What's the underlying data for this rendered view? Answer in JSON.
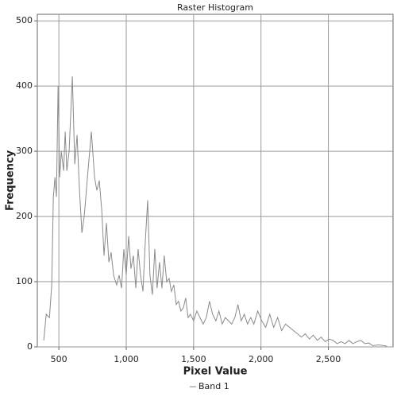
{
  "chart_data": {
    "type": "line",
    "title": "Raster Histogram",
    "xlabel": "Pixel Value",
    "ylabel": "Frequency",
    "x": [
      388,
      406,
      430,
      447,
      459,
      471,
      482,
      494,
      506,
      518,
      535,
      547,
      559,
      576,
      600,
      618,
      635,
      653,
      671,
      688,
      712,
      741,
      765,
      782,
      800,
      818,
      835,
      853,
      871,
      888,
      906,
      929,
      947,
      965,
      982,
      1000,
      1018,
      1035,
      1053,
      1071,
      1088,
      1106,
      1124,
      1141,
      1159,
      1176,
      1194,
      1212,
      1229,
      1247,
      1265,
      1282,
      1300,
      1318,
      1335,
      1353,
      1371,
      1388,
      1406,
      1424,
      1441,
      1459,
      1476,
      1500,
      1524,
      1547,
      1571,
      1594,
      1618,
      1641,
      1665,
      1688,
      1712,
      1735,
      1759,
      1782,
      1806,
      1829,
      1853,
      1876,
      1900,
      1924,
      1947,
      1976,
      2006,
      2035,
      2065,
      2094,
      2124,
      2153,
      2182,
      2212,
      2241,
      2271,
      2300,
      2329,
      2359,
      2388,
      2418,
      2447,
      2476,
      2506,
      2535,
      2565,
      2594,
      2624,
      2653,
      2682,
      2712,
      2741,
      2771,
      2800,
      2829,
      2876,
      2935
    ],
    "series": [
      {
        "name": "Band 1",
        "color": "#8a8a8a",
        "values": [
          10,
          50,
          45,
          95,
          230,
          260,
          230,
          400,
          260,
          300,
          270,
          330,
          270,
          300,
          415,
          280,
          325,
          240,
          175,
          200,
          260,
          330,
          260,
          240,
          255,
          210,
          140,
          190,
          130,
          145,
          110,
          95,
          110,
          90,
          150,
          110,
          170,
          120,
          140,
          90,
          150,
          110,
          85,
          160,
          225,
          110,
          80,
          150,
          90,
          130,
          90,
          140,
          100,
          105,
          85,
          95,
          65,
          70,
          55,
          60,
          75,
          45,
          50,
          40,
          55,
          45,
          35,
          45,
          70,
          50,
          40,
          55,
          35,
          45,
          40,
          35,
          45,
          65,
          40,
          50,
          35,
          45,
          35,
          55,
          40,
          30,
          50,
          30,
          45,
          25,
          35,
          30,
          25,
          20,
          15,
          20,
          12,
          18,
          10,
          15,
          8,
          12,
          10,
          5,
          8,
          5,
          10,
          5,
          8,
          10,
          5,
          6,
          2,
          3,
          1
        ]
      }
    ],
    "xlim": [
      340,
      2980
    ],
    "ylim": [
      0,
      510
    ],
    "xticks": [
      500,
      {
        "value": 1000,
        "label": "1,000"
      },
      {
        "value": 1500,
        "label": "1,500"
      },
      {
        "value": 2000,
        "label": "2,000"
      },
      {
        "value": 2500,
        "label": "2,500"
      }
    ],
    "yticks": [
      0,
      100,
      200,
      300,
      400,
      500
    ],
    "grid": true,
    "legend": "bottom"
  }
}
